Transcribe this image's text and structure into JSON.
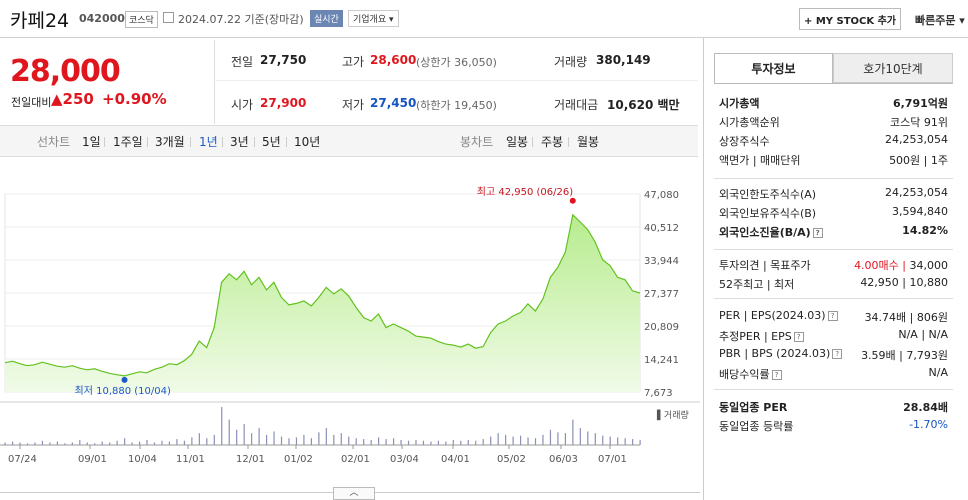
{
  "header": {
    "stock_name": "카페24",
    "stock_code": "042000",
    "market": "코스닥",
    "date_text": "2024.07.22  기준(장마감)",
    "realtime": "실시간",
    "company_overview": "기업개요 ▾",
    "my_stock": "+ MY STOCK 추가",
    "quick_order": "빠른주문 ▾"
  },
  "price": {
    "current": "28,000",
    "change_label": "전일대비",
    "change_value": "▲250",
    "change_pct": "+0.90%"
  },
  "quote": {
    "prev_label": "전일",
    "prev_value": "27,750",
    "high_label": "고가",
    "high_value": "28,600",
    "upper_limit": "(상한가 36,050)",
    "volume_label": "거래량",
    "volume_value": "380,149",
    "open_label": "시가",
    "open_value": "27,900",
    "low_label": "저가",
    "low_value": "27,450",
    "lower_limit": "(하한가 19,450)",
    "amount_label": "거래대금",
    "amount_value": "10,620 백만"
  },
  "period_tabs": {
    "line_label": "선차트",
    "items": [
      "1일",
      "1주일",
      "3개월",
      "1년",
      "3년",
      "5년",
      "10년"
    ],
    "active": "1년",
    "candle_label": "봉차트",
    "candle_items": [
      "일봉",
      "주봉",
      "월봉"
    ]
  },
  "chart_data": {
    "type": "area",
    "x_labels": [
      "07/24",
      "09/01",
      "10/04",
      "11/01",
      "12/01",
      "01/02",
      "02/01",
      "03/04",
      "04/01",
      "05/02",
      "06/03",
      "07/01"
    ],
    "y_ticks": [
      47080,
      40512,
      33944,
      27377,
      20809,
      14241,
      7673
    ],
    "ylim": [
      7673,
      47080
    ],
    "series": [
      {
        "values": [
          13500,
          13800,
          13300,
          12900,
          13100,
          13600,
          13200,
          12800,
          12600,
          12900,
          12400,
          12100,
          12300,
          11800,
          11400,
          11100,
          10880,
          11300,
          11700,
          11500,
          12200,
          12600,
          13300,
          13100,
          13900,
          15200,
          17800,
          16500,
          20500,
          29500,
          31200,
          30000,
          31700,
          29000,
          30500,
          28000,
          29500,
          26500,
          25000,
          25300,
          25800,
          24800,
          26500,
          28500,
          27200,
          28200,
          26800,
          24500,
          22500,
          21800,
          23200,
          20500,
          21200,
          20500,
          19800,
          18800,
          18600,
          18400,
          17700,
          17200,
          17000,
          16600,
          17200,
          16400,
          16700,
          19500,
          21200,
          21800,
          22800,
          23500,
          25200,
          23800,
          26200,
          30500,
          32500,
          35500,
          42950,
          41500,
          40000,
          37500,
          34000,
          32800,
          30500,
          30000,
          27800,
          27377
        ]
      }
    ],
    "high_label": "최고 42,950 (06/26)",
    "low_label": "최저 10,880 (10/04)",
    "volume_label": "거래량",
    "volume": [
      3,
      4,
      3,
      2,
      3,
      5,
      3,
      4,
      2,
      3,
      6,
      3,
      2,
      4,
      3,
      5,
      8,
      3,
      4,
      6,
      3,
      5,
      4,
      7,
      5,
      9,
      14,
      8,
      12,
      45,
      30,
      18,
      25,
      14,
      20,
      12,
      16,
      10,
      8,
      9,
      12,
      8,
      15,
      20,
      12,
      14,
      10,
      8,
      7,
      6,
      9,
      7,
      8,
      6,
      5,
      6,
      5,
      4,
      5,
      4,
      6,
      5,
      6,
      5,
      7,
      10,
      14,
      12,
      10,
      11,
      9,
      8,
      12,
      18,
      15,
      14,
      30,
      20,
      16,
      14,
      11,
      10,
      9,
      8,
      7,
      6
    ]
  },
  "right_panel": {
    "tab1": "투자정보",
    "tab2": "호가10단계",
    "rows1": [
      {
        "label": "시가총액",
        "value": "6,791억원",
        "bold": true
      },
      {
        "label": "시가총액순위",
        "value": "코스닥 91위"
      },
      {
        "label": "상장주식수",
        "value": "24,253,054"
      },
      {
        "label": "액면가 | 매매단위",
        "value": "500원 | 1주"
      }
    ],
    "rows2": [
      {
        "label": "외국인한도주식수(A)",
        "value": "24,253,054"
      },
      {
        "label": "외국인보유주식수(B)",
        "value": "3,594,840"
      },
      {
        "label": "외국인소진율(B/A)",
        "value": "14.82%",
        "bold": true,
        "help": true
      }
    ],
    "rows3": [
      {
        "label": "투자의견 | 목표주가",
        "value_red": "4.00매수",
        "value": "34,000"
      },
      {
        "label": "52주최고 | 최저",
        "value": "42,950 | 10,880"
      }
    ],
    "rows4": [
      {
        "label": "PER | EPS(2024.03)",
        "value": "34.74배 | 806원",
        "help": true
      },
      {
        "label": "추정PER | EPS",
        "value": "N/A | N/A",
        "help": true
      },
      {
        "label": "PBR | BPS (2024.03)",
        "value": "3.59배 | 7,793원",
        "help": true
      },
      {
        "label": "배당수익률",
        "value": "N/A",
        "help": true
      }
    ],
    "rows5": [
      {
        "label": "동일업종 PER",
        "value": "28.84배",
        "bold": true
      },
      {
        "label": "동일업종 등락률",
        "value": "-1.70%",
        "blue": true
      }
    ]
  }
}
